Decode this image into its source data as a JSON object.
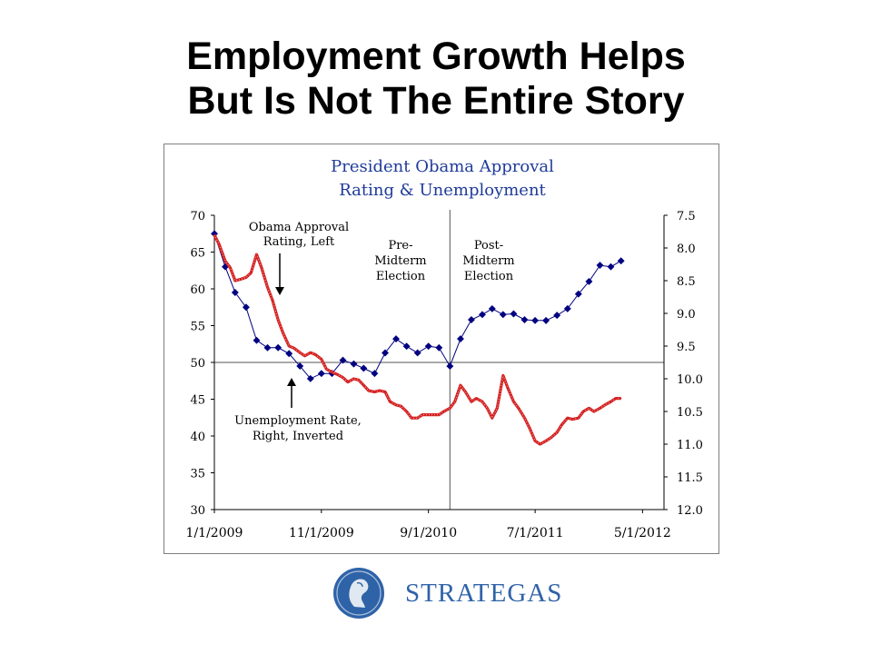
{
  "slide": {
    "title_line1": "Employment Growth Helps",
    "title_line2": "But Is Not The Entire Story"
  },
  "brand": {
    "name": "STRATEGAS",
    "color": "#2f63a8"
  },
  "chart_data": {
    "type": "line",
    "title_line1": "President Obama Approval",
    "title_line2": "Rating & Unemployment",
    "title_color": "#1f3b99",
    "ylim_left": [
      30,
      70
    ],
    "yticks_left": [
      30,
      35,
      40,
      45,
      50,
      55,
      60,
      65,
      70
    ],
    "ylim_right_inverted": [
      7.5,
      12.0
    ],
    "yticks_right": [
      "7.5",
      "8.0",
      "8.5",
      "9.0",
      "9.5",
      "10.0",
      "10.5",
      "11.0",
      "11.5",
      "12.0"
    ],
    "x_tick_labels": [
      "1/1/2009",
      "11/1/2009",
      "9/1/2010",
      "7/1/2011",
      "5/1/2012"
    ],
    "x_range": [
      "1/1/2009",
      "7/1/2012"
    ],
    "reference_lines": {
      "approval_level": 50,
      "midterm_election_date": "11/1/2010"
    },
    "annotations": {
      "approval": [
        "Obama Approval",
        "Rating, Left"
      ],
      "unemployment": [
        "Unemployment Rate,",
        "Right, Inverted"
      ],
      "pre": [
        "Pre-",
        "Midterm",
        "Election"
      ],
      "post": [
        "Post-",
        "Midterm",
        "Election"
      ]
    },
    "series": [
      {
        "name": "Obama Approval Rating",
        "axis": "left",
        "color": "#000080",
        "points": [
          [
            "1/1/2009",
            67.5
          ],
          [
            "2/1/2009",
            63
          ],
          [
            "3/1/2009",
            59.5
          ],
          [
            "4/1/2009",
            57.5
          ],
          [
            "5/1/2009",
            53
          ],
          [
            "6/1/2009",
            52
          ],
          [
            "7/1/2009",
            52
          ],
          [
            "8/1/2009",
            51.2
          ],
          [
            "9/1/2009",
            49.5
          ],
          [
            "10/1/2009",
            47.8
          ],
          [
            "11/1/2009",
            48.5
          ],
          [
            "12/1/2009",
            48.5
          ],
          [
            "1/1/2010",
            50.3
          ],
          [
            "2/1/2010",
            49.8
          ],
          [
            "3/1/2010",
            49.2
          ],
          [
            "4/1/2010",
            48.5
          ],
          [
            "5/1/2010",
            51.3
          ],
          [
            "6/1/2010",
            53.2
          ],
          [
            "7/1/2010",
            52.2
          ],
          [
            "8/1/2010",
            51.3
          ],
          [
            "9/1/2010",
            52.2
          ],
          [
            "10/1/2010",
            52
          ],
          [
            "11/1/2010",
            49.5
          ],
          [
            "12/1/2010",
            53.2
          ],
          [
            "1/1/2011",
            55.8
          ],
          [
            "2/1/2011",
            56.5
          ],
          [
            "3/1/2011",
            57.3
          ],
          [
            "4/1/2011",
            56.5
          ],
          [
            "5/1/2011",
            56.6
          ],
          [
            "6/1/2011",
            55.8
          ],
          [
            "7/1/2011",
            55.7
          ],
          [
            "8/1/2011",
            55.7
          ],
          [
            "9/1/2011",
            56.4
          ],
          [
            "10/1/2011",
            57.3
          ],
          [
            "11/1/2011",
            59.3
          ],
          [
            "12/1/2011",
            61
          ],
          [
            "1/1/2012",
            63.2
          ],
          [
            "2/1/2012",
            63
          ],
          [
            "3/1/2012",
            63.8
          ]
        ]
      },
      {
        "name": "Unemployment Rate",
        "axis": "right",
        "color": "#d42020",
        "points": [
          [
            "1/1/2009",
            7.8
          ],
          [
            "1/15/2009",
            7.95
          ],
          [
            "2/1/2009",
            8.2
          ],
          [
            "2/15/2009",
            8.3
          ],
          [
            "3/1/2009",
            8.5
          ],
          [
            "3/15/2009",
            8.48
          ],
          [
            "4/1/2009",
            8.45
          ],
          [
            "4/15/2009",
            8.38
          ],
          [
            "5/1/2009",
            8.1
          ],
          [
            "5/15/2009",
            8.3
          ],
          [
            "6/1/2009",
            8.6
          ],
          [
            "6/15/2009",
            8.8
          ],
          [
            "7/1/2009",
            9.1
          ],
          [
            "7/15/2009",
            9.3
          ],
          [
            "8/1/2009",
            9.5
          ],
          [
            "8/15/2009",
            9.53
          ],
          [
            "9/1/2009",
            9.6
          ],
          [
            "9/15/2009",
            9.65
          ],
          [
            "10/1/2009",
            9.6
          ],
          [
            "10/15/2009",
            9.63
          ],
          [
            "11/1/2009",
            9.7
          ],
          [
            "11/15/2009",
            9.85
          ],
          [
            "12/1/2009",
            9.9
          ],
          [
            "12/15/2009",
            9.93
          ],
          [
            "1/1/2010",
            9.98
          ],
          [
            "1/15/2010",
            10.05
          ],
          [
            "2/1/2010",
            10.0
          ],
          [
            "2/15/2010",
            10.02
          ],
          [
            "3/1/2010",
            10.1
          ],
          [
            "3/15/2010",
            10.18
          ],
          [
            "4/1/2010",
            10.2
          ],
          [
            "4/15/2010",
            10.18
          ],
          [
            "5/1/2010",
            10.2
          ],
          [
            "5/15/2010",
            10.35
          ],
          [
            "6/1/2010",
            10.4
          ],
          [
            "6/15/2010",
            10.42
          ],
          [
            "7/1/2010",
            10.5
          ],
          [
            "7/15/2010",
            10.6
          ],
          [
            "8/1/2010",
            10.6
          ],
          [
            "8/15/2010",
            10.55
          ],
          [
            "9/1/2010",
            10.55
          ],
          [
            "9/15/2010",
            10.55
          ],
          [
            "10/1/2010",
            10.55
          ],
          [
            "10/15/2010",
            10.5
          ],
          [
            "11/1/2010",
            10.45
          ],
          [
            "11/15/2010",
            10.35
          ],
          [
            "12/1/2010",
            10.1
          ],
          [
            "12/15/2010",
            10.2
          ],
          [
            "1/1/2011",
            10.35
          ],
          [
            "1/15/2011",
            10.3
          ],
          [
            "2/1/2011",
            10.35
          ],
          [
            "2/15/2011",
            10.45
          ],
          [
            "3/1/2011",
            10.6
          ],
          [
            "3/15/2011",
            10.45
          ],
          [
            "4/1/2011",
            9.95
          ],
          [
            "4/15/2011",
            10.15
          ],
          [
            "5/1/2011",
            10.35
          ],
          [
            "5/15/2011",
            10.45
          ],
          [
            "6/1/2011",
            10.6
          ],
          [
            "6/15/2011",
            10.75
          ],
          [
            "7/1/2011",
            10.95
          ],
          [
            "7/15/2011",
            11.0
          ],
          [
            "8/1/2011",
            10.95
          ],
          [
            "8/15/2011",
            10.9
          ],
          [
            "9/1/2011",
            10.82
          ],
          [
            "9/15/2011",
            10.7
          ],
          [
            "10/1/2011",
            10.6
          ],
          [
            "10/15/2011",
            10.62
          ],
          [
            "11/1/2011",
            10.6
          ],
          [
            "11/15/2011",
            10.5
          ],
          [
            "12/1/2011",
            10.45
          ],
          [
            "12/15/2011",
            10.5
          ],
          [
            "1/1/2012",
            10.45
          ],
          [
            "1/15/2012",
            10.4
          ],
          [
            "2/1/2012",
            10.35
          ],
          [
            "2/15/2012",
            10.3
          ],
          [
            "3/1/2012",
            10.3
          ]
        ]
      }
    ]
  }
}
